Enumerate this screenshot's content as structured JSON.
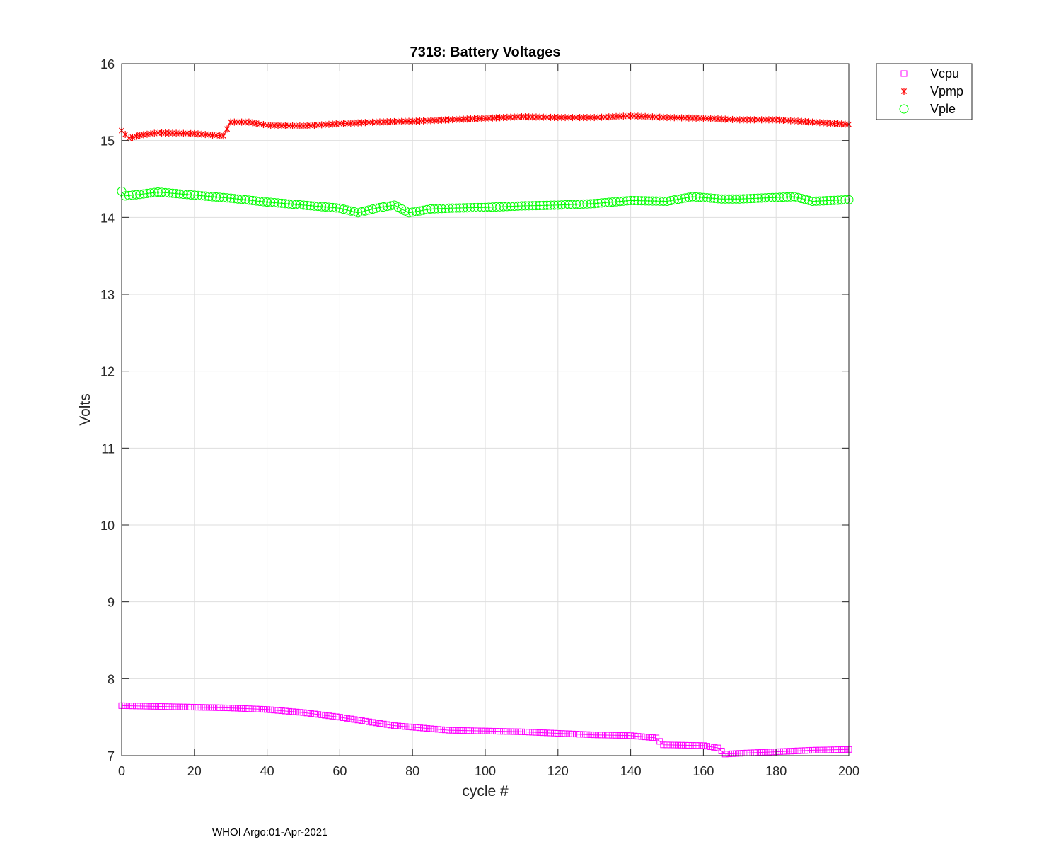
{
  "chart_data": {
    "type": "line",
    "title": "7318: Battery Voltages",
    "xlabel": "cycle #",
    "ylabel": "Volts",
    "xlim": [
      0,
      200
    ],
    "ylim": [
      7,
      16
    ],
    "xticks": [
      0,
      20,
      40,
      60,
      80,
      100,
      120,
      140,
      160,
      180,
      200
    ],
    "yticks": [
      7,
      8,
      9,
      10,
      11,
      12,
      13,
      14,
      15,
      16
    ],
    "xtick_labels": [
      "0",
      "20",
      "40",
      "60",
      "80",
      "100",
      "120",
      "140",
      "160",
      "180",
      "200"
    ],
    "ytick_labels": [
      "7",
      "8",
      "9",
      "10",
      "11",
      "12",
      "13",
      "14",
      "15",
      "16"
    ],
    "grid": true,
    "legend_position": "outside-top-right",
    "series": [
      {
        "name": "Vcpu",
        "color": "#ff00ff",
        "marker": "square",
        "points": [
          [
            0,
            7.65
          ],
          [
            10,
            7.64
          ],
          [
            20,
            7.63
          ],
          [
            30,
            7.62
          ],
          [
            40,
            7.6
          ],
          [
            50,
            7.56
          ],
          [
            60,
            7.5
          ],
          [
            68,
            7.44
          ],
          [
            75,
            7.39
          ],
          [
            80,
            7.37
          ],
          [
            90,
            7.33
          ],
          [
            100,
            7.32
          ],
          [
            110,
            7.31
          ],
          [
            120,
            7.29
          ],
          [
            130,
            7.27
          ],
          [
            140,
            7.26
          ],
          [
            147,
            7.23
          ],
          [
            149,
            7.14
          ],
          [
            160,
            7.13
          ],
          [
            164,
            7.1
          ],
          [
            166,
            7.02
          ],
          [
            170,
            7.03
          ],
          [
            180,
            7.05
          ],
          [
            190,
            7.07
          ],
          [
            200,
            7.08
          ]
        ]
      },
      {
        "name": "Vpmp",
        "color": "#ff0000",
        "marker": "asterisk",
        "points": [
          [
            0,
            15.13
          ],
          [
            2,
            15.03
          ],
          [
            5,
            15.07
          ],
          [
            10,
            15.1
          ],
          [
            20,
            15.09
          ],
          [
            28,
            15.06
          ],
          [
            30,
            15.24
          ],
          [
            35,
            15.24
          ],
          [
            40,
            15.2
          ],
          [
            50,
            15.19
          ],
          [
            60,
            15.22
          ],
          [
            70,
            15.24
          ],
          [
            78,
            15.25
          ],
          [
            80,
            15.25
          ],
          [
            90,
            15.27
          ],
          [
            100,
            15.29
          ],
          [
            110,
            15.31
          ],
          [
            120,
            15.3
          ],
          [
            130,
            15.3
          ],
          [
            140,
            15.32
          ],
          [
            150,
            15.3
          ],
          [
            160,
            15.29
          ],
          [
            170,
            15.27
          ],
          [
            180,
            15.27
          ],
          [
            190,
            15.24
          ],
          [
            200,
            15.21
          ]
        ]
      },
      {
        "name": "Vple",
        "color": "#00ff00",
        "marker": "circle",
        "points": [
          [
            0,
            14.34
          ],
          [
            1,
            14.28
          ],
          [
            5,
            14.3
          ],
          [
            10,
            14.33
          ],
          [
            20,
            14.29
          ],
          [
            30,
            14.25
          ],
          [
            40,
            14.2
          ],
          [
            50,
            14.16
          ],
          [
            60,
            14.12
          ],
          [
            65,
            14.06
          ],
          [
            70,
            14.12
          ],
          [
            75,
            14.16
          ],
          [
            79,
            14.06
          ],
          [
            85,
            14.11
          ],
          [
            90,
            14.12
          ],
          [
            100,
            14.13
          ],
          [
            110,
            14.15
          ],
          [
            120,
            14.16
          ],
          [
            130,
            14.18
          ],
          [
            140,
            14.22
          ],
          [
            150,
            14.21
          ],
          [
            157,
            14.27
          ],
          [
            165,
            14.24
          ],
          [
            170,
            14.24
          ],
          [
            180,
            14.26
          ],
          [
            185,
            14.27
          ],
          [
            190,
            14.21
          ],
          [
            200,
            14.23
          ]
        ]
      }
    ]
  },
  "footer": {
    "text": "WHOI Argo:01-Apr-2021"
  }
}
